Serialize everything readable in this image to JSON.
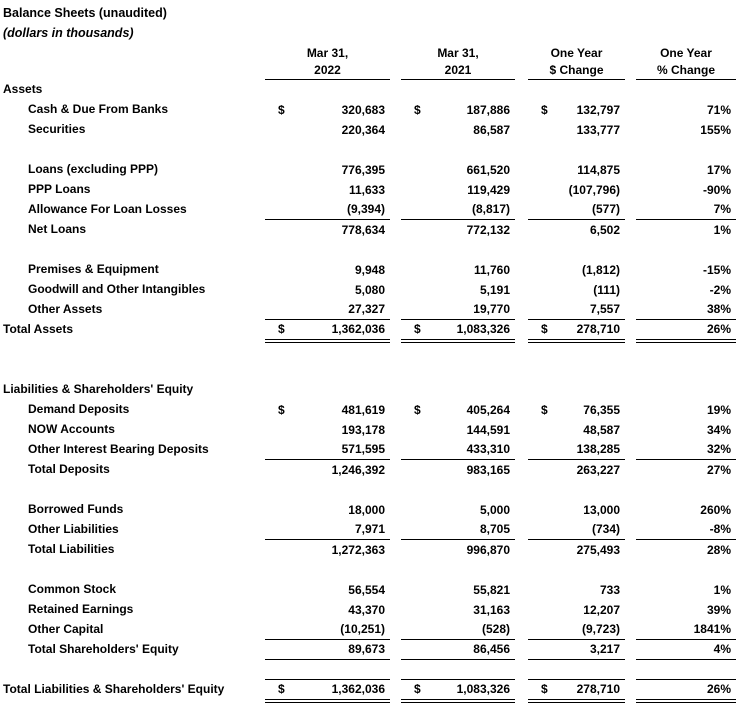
{
  "title": "Balance Sheets (unaudited)",
  "subtitle": "(dollars in thousands)",
  "symbols": {
    "dollar": "$"
  },
  "colors": {
    "text": "#000000",
    "background": "#ffffff"
  },
  "columns": [
    {
      "line1": "Mar 31,",
      "line2": "2022"
    },
    {
      "line1": "Mar 31,",
      "line2": "2021"
    },
    {
      "line1": "One Year",
      "line2": "$ Change"
    },
    {
      "line1": "One Year",
      "line2": "% Change"
    }
  ],
  "rows": [
    {
      "type": "section",
      "label": "Assets"
    },
    {
      "type": "data",
      "label": "Cash & Due From Banks",
      "indent": 1,
      "dollar": true,
      "values": [
        "320,683",
        "187,886",
        "132,797",
        "71%"
      ]
    },
    {
      "type": "data",
      "label": "Securities",
      "indent": 1,
      "dollar": false,
      "values": [
        "220,364",
        "86,587",
        "133,777",
        "155%"
      ]
    },
    {
      "type": "blank"
    },
    {
      "type": "data",
      "label": "Loans (excluding PPP)",
      "indent": 1,
      "dollar": false,
      "values": [
        "776,395",
        "661,520",
        "114,875",
        "17%"
      ]
    },
    {
      "type": "data",
      "label": "PPP Loans",
      "indent": 1,
      "dollar": false,
      "values": [
        "11,633",
        "119,429",
        "(107,796)",
        "-90%"
      ]
    },
    {
      "type": "data",
      "label": "Allowance For Loan Losses",
      "indent": 1,
      "dollar": false,
      "values": [
        "(9,394)",
        "(8,817)",
        "(577)",
        "7%"
      ],
      "underline": "single"
    },
    {
      "type": "total",
      "label": "Net Loans",
      "indent": 1,
      "dollar": false,
      "values": [
        "778,634",
        "772,132",
        "6,502",
        "1%"
      ]
    },
    {
      "type": "blank"
    },
    {
      "type": "data",
      "label": "Premises & Equipment",
      "indent": 1,
      "dollar": false,
      "values": [
        "9,948",
        "11,760",
        "(1,812)",
        "-15%"
      ]
    },
    {
      "type": "data",
      "label": "Goodwill and Other Intangibles",
      "indent": 1,
      "dollar": false,
      "values": [
        "5,080",
        "5,191",
        "(111)",
        "-2%"
      ]
    },
    {
      "type": "data",
      "label": "Other Assets",
      "indent": 1,
      "dollar": false,
      "values": [
        "27,327",
        "19,770",
        "7,557",
        "38%"
      ],
      "underline": "single"
    },
    {
      "type": "total",
      "label": "Total Assets",
      "indent": 0,
      "dollar": true,
      "values": [
        "1,362,036",
        "1,083,326",
        "278,710",
        "26%"
      ],
      "underline": "double"
    },
    {
      "type": "blank"
    },
    {
      "type": "blank"
    },
    {
      "type": "section",
      "label": "Liabilities & Shareholders' Equity"
    },
    {
      "type": "data",
      "label": "Demand Deposits",
      "indent": 1,
      "dollar": true,
      "values": [
        "481,619",
        "405,264",
        "76,355",
        "19%"
      ]
    },
    {
      "type": "data",
      "label": "NOW Accounts",
      "indent": 1,
      "dollar": false,
      "values": [
        "193,178",
        "144,591",
        "48,587",
        "34%"
      ]
    },
    {
      "type": "data",
      "label": "Other Interest Bearing Deposits",
      "indent": 1,
      "dollar": false,
      "values": [
        "571,595",
        "433,310",
        "138,285",
        "32%"
      ],
      "underline": "single"
    },
    {
      "type": "total",
      "label": "Total Deposits",
      "indent": 1,
      "dollar": false,
      "values": [
        "1,246,392",
        "983,165",
        "263,227",
        "27%"
      ]
    },
    {
      "type": "blank"
    },
    {
      "type": "data",
      "label": "Borrowed Funds",
      "indent": 1,
      "dollar": false,
      "values": [
        "18,000",
        "5,000",
        "13,000",
        "260%"
      ]
    },
    {
      "type": "data",
      "label": "Other Liabilities",
      "indent": 1,
      "dollar": false,
      "values": [
        "7,971",
        "8,705",
        "(734)",
        "-8%"
      ],
      "underline": "single"
    },
    {
      "type": "total",
      "label": "Total Liabilities",
      "indent": 1,
      "dollar": false,
      "values": [
        "1,272,363",
        "996,870",
        "275,493",
        "28%"
      ]
    },
    {
      "type": "blank"
    },
    {
      "type": "data",
      "label": "Common Stock",
      "indent": 1,
      "dollar": false,
      "values": [
        "56,554",
        "55,821",
        "733",
        "1%"
      ]
    },
    {
      "type": "data",
      "label": "Retained Earnings",
      "indent": 1,
      "dollar": false,
      "values": [
        "43,370",
        "31,163",
        "12,207",
        "39%"
      ]
    },
    {
      "type": "data",
      "label": "Other Capital",
      "indent": 1,
      "dollar": false,
      "values": [
        "(10,251)",
        "(528)",
        "(9,723)",
        "1841%"
      ],
      "underline": "single"
    },
    {
      "type": "total",
      "label": "Total Shareholders' Equity",
      "indent": 1,
      "dollar": false,
      "values": [
        "89,673",
        "86,456",
        "3,217",
        "4%"
      ],
      "underline": "single"
    },
    {
      "type": "blank",
      "underline": "single"
    },
    {
      "type": "total",
      "label": "Total Liabilities & Shareholders' Equity",
      "indent": 0,
      "dollar": true,
      "values": [
        "1,362,036",
        "1,083,326",
        "278,710",
        "26%"
      ],
      "underline": "double"
    }
  ]
}
